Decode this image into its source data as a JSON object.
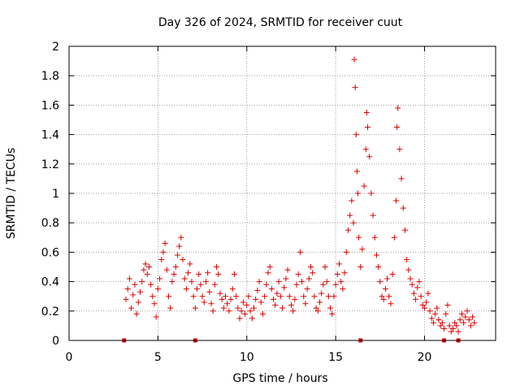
{
  "chart_data": {
    "type": "scatter",
    "title": "Day 326 of 2024, SRMTID for receiver cuut",
    "xlabel": "GPS time / hours",
    "ylabel": "SRMTID / TECUs",
    "xlim": [
      0,
      24
    ],
    "ylim": [
      0,
      2
    ],
    "grid": true,
    "xticks": [
      0,
      5,
      10,
      15,
      20
    ],
    "xtick_labels": [
      "0",
      "5",
      "10",
      "15",
      "20"
    ],
    "yticks": [
      0,
      0.2,
      0.4,
      0.6,
      0.8,
      1,
      1.2,
      1.4,
      1.6,
      1.8,
      2
    ],
    "ytick_labels": [
      "0",
      "0.2",
      "0.4",
      "0.6",
      "0.8",
      "1",
      "1.2",
      "1.4",
      "1.6",
      "1.8",
      "2"
    ],
    "marker": "+",
    "color": "#e00000",
    "baseline_markers_x": [
      3.1,
      7.1,
      16.4,
      21.1,
      21.9
    ],
    "series": [
      {
        "name": "SRMTID",
        "points": [
          [
            3.2,
            0.28
          ],
          [
            3.3,
            0.35
          ],
          [
            3.4,
            0.42
          ],
          [
            3.5,
            0.22
          ],
          [
            3.6,
            0.31
          ],
          [
            3.7,
            0.38
          ],
          [
            3.8,
            0.18
          ],
          [
            3.9,
            0.26
          ],
          [
            4.0,
            0.33
          ],
          [
            4.1,
            0.4
          ],
          [
            4.2,
            0.48
          ],
          [
            4.3,
            0.52
          ],
          [
            4.4,
            0.45
          ],
          [
            4.5,
            0.5
          ],
          [
            4.6,
            0.38
          ],
          [
            4.7,
            0.3
          ],
          [
            4.8,
            0.25
          ],
          [
            4.9,
            0.16
          ],
          [
            5.0,
            0.35
          ],
          [
            5.1,
            0.42
          ],
          [
            5.2,
            0.55
          ],
          [
            5.3,
            0.6
          ],
          [
            5.4,
            0.66
          ],
          [
            5.5,
            0.48
          ],
          [
            5.6,
            0.3
          ],
          [
            5.7,
            0.22
          ],
          [
            5.8,
            0.4
          ],
          [
            5.9,
            0.45
          ],
          [
            6.0,
            0.5
          ],
          [
            6.1,
            0.58
          ],
          [
            6.2,
            0.64
          ],
          [
            6.3,
            0.7
          ],
          [
            6.4,
            0.55
          ],
          [
            6.5,
            0.42
          ],
          [
            6.6,
            0.35
          ],
          [
            6.7,
            0.46
          ],
          [
            6.8,
            0.52
          ],
          [
            6.9,
            0.4
          ],
          [
            7.0,
            0.3
          ],
          [
            7.1,
            0.22
          ],
          [
            7.2,
            0.35
          ],
          [
            7.3,
            0.45
          ],
          [
            7.4,
            0.38
          ],
          [
            7.5,
            0.3
          ],
          [
            7.6,
            0.26
          ],
          [
            7.7,
            0.4
          ],
          [
            7.8,
            0.46
          ],
          [
            7.9,
            0.33
          ],
          [
            8.0,
            0.25
          ],
          [
            8.1,
            0.2
          ],
          [
            8.2,
            0.38
          ],
          [
            8.3,
            0.5
          ],
          [
            8.4,
            0.45
          ],
          [
            8.5,
            0.32
          ],
          [
            8.6,
            0.28
          ],
          [
            8.7,
            0.22
          ],
          [
            8.8,
            0.3
          ],
          [
            8.9,
            0.25
          ],
          [
            9.0,
            0.2
          ],
          [
            9.1,
            0.28
          ],
          [
            9.2,
            0.35
          ],
          [
            9.3,
            0.45
          ],
          [
            9.4,
            0.3
          ],
          [
            9.5,
            0.22
          ],
          [
            9.6,
            0.15
          ],
          [
            9.7,
            0.2
          ],
          [
            9.8,
            0.26
          ],
          [
            9.9,
            0.18
          ],
          [
            10.0,
            0.24
          ],
          [
            10.1,
            0.3
          ],
          [
            10.2,
            0.2
          ],
          [
            10.3,
            0.15
          ],
          [
            10.4,
            0.22
          ],
          [
            10.5,
            0.28
          ],
          [
            10.6,
            0.34
          ],
          [
            10.7,
            0.4
          ],
          [
            10.8,
            0.26
          ],
          [
            10.9,
            0.18
          ],
          [
            11.0,
            0.3
          ],
          [
            11.1,
            0.38
          ],
          [
            11.2,
            0.46
          ],
          [
            11.3,
            0.5
          ],
          [
            11.4,
            0.35
          ],
          [
            11.5,
            0.28
          ],
          [
            11.6,
            0.24
          ],
          [
            11.7,
            0.32
          ],
          [
            11.8,
            0.4
          ],
          [
            11.9,
            0.3
          ],
          [
            12.0,
            0.22
          ],
          [
            12.1,
            0.36
          ],
          [
            12.2,
            0.42
          ],
          [
            12.3,
            0.48
          ],
          [
            12.4,
            0.3
          ],
          [
            12.5,
            0.24
          ],
          [
            12.6,
            0.2
          ],
          [
            12.7,
            0.28
          ],
          [
            12.8,
            0.38
          ],
          [
            12.9,
            0.45
          ],
          [
            13.0,
            0.6
          ],
          [
            13.1,
            0.4
          ],
          [
            13.2,
            0.3
          ],
          [
            13.3,
            0.25
          ],
          [
            13.4,
            0.35
          ],
          [
            13.5,
            0.42
          ],
          [
            13.6,
            0.5
          ],
          [
            13.7,
            0.46
          ],
          [
            13.8,
            0.3
          ],
          [
            13.9,
            0.22
          ],
          [
            14.0,
            0.2
          ],
          [
            14.1,
            0.26
          ],
          [
            14.2,
            0.32
          ],
          [
            14.3,
            0.38
          ],
          [
            14.4,
            0.5
          ],
          [
            14.5,
            0.4
          ],
          [
            14.6,
            0.3
          ],
          [
            14.7,
            0.22
          ],
          [
            14.8,
            0.18
          ],
          [
            14.9,
            0.3
          ],
          [
            15.0,
            0.38
          ],
          [
            15.1,
            0.45
          ],
          [
            15.2,
            0.52
          ],
          [
            15.3,
            0.4
          ],
          [
            15.4,
            0.35
          ],
          [
            15.5,
            0.46
          ],
          [
            15.6,
            0.6
          ],
          [
            15.7,
            0.75
          ],
          [
            15.8,
            0.85
          ],
          [
            15.9,
            0.95
          ],
          [
            16.0,
            0.8
          ],
          [
            16.05,
            1.91
          ],
          [
            16.1,
            1.72
          ],
          [
            16.15,
            1.4
          ],
          [
            16.2,
            1.15
          ],
          [
            16.25,
            1.0
          ],
          [
            16.3,
            0.7
          ],
          [
            16.4,
            0.5
          ],
          [
            16.5,
            0.62
          ],
          [
            16.6,
            1.05
          ],
          [
            16.7,
            1.3
          ],
          [
            16.75,
            1.55
          ],
          [
            16.8,
            1.45
          ],
          [
            16.9,
            1.25
          ],
          [
            17.0,
            1.0
          ],
          [
            17.1,
            0.85
          ],
          [
            17.2,
            0.7
          ],
          [
            17.3,
            0.58
          ],
          [
            17.4,
            0.5
          ],
          [
            17.5,
            0.4
          ],
          [
            17.6,
            0.3
          ],
          [
            17.7,
            0.28
          ],
          [
            17.8,
            0.35
          ],
          [
            17.9,
            0.42
          ],
          [
            18.0,
            0.3
          ],
          [
            18.1,
            0.25
          ],
          [
            18.2,
            0.45
          ],
          [
            18.3,
            0.7
          ],
          [
            18.4,
            0.95
          ],
          [
            18.45,
            1.45
          ],
          [
            18.5,
            1.58
          ],
          [
            18.6,
            1.3
          ],
          [
            18.7,
            1.1
          ],
          [
            18.8,
            0.9
          ],
          [
            18.9,
            0.75
          ],
          [
            19.0,
            0.55
          ],
          [
            19.1,
            0.48
          ],
          [
            19.2,
            0.42
          ],
          [
            19.3,
            0.38
          ],
          [
            19.4,
            0.32
          ],
          [
            19.5,
            0.28
          ],
          [
            19.6,
            0.36
          ],
          [
            19.7,
            0.4
          ],
          [
            19.8,
            0.3
          ],
          [
            19.9,
            0.24
          ],
          [
            20.0,
            0.22
          ],
          [
            20.1,
            0.26
          ],
          [
            20.2,
            0.32
          ],
          [
            20.3,
            0.2
          ],
          [
            20.4,
            0.15
          ],
          [
            20.5,
            0.12
          ],
          [
            20.6,
            0.18
          ],
          [
            20.7,
            0.22
          ],
          [
            20.8,
            0.14
          ],
          [
            20.9,
            0.1
          ],
          [
            21.0,
            0.12
          ],
          [
            21.1,
            0.08
          ],
          [
            21.2,
            0.18
          ],
          [
            21.3,
            0.24
          ],
          [
            21.4,
            0.1
          ],
          [
            21.5,
            0.06
          ],
          [
            21.6,
            0.08
          ],
          [
            21.7,
            0.12
          ],
          [
            21.8,
            0.1
          ],
          [
            21.9,
            0.06
          ],
          [
            22.0,
            0.14
          ],
          [
            22.1,
            0.18
          ],
          [
            22.2,
            0.12
          ],
          [
            22.3,
            0.16
          ],
          [
            22.4,
            0.2
          ],
          [
            22.5,
            0.14
          ],
          [
            22.6,
            0.1
          ],
          [
            22.7,
            0.16
          ],
          [
            22.8,
            0.12
          ]
        ]
      }
    ]
  }
}
